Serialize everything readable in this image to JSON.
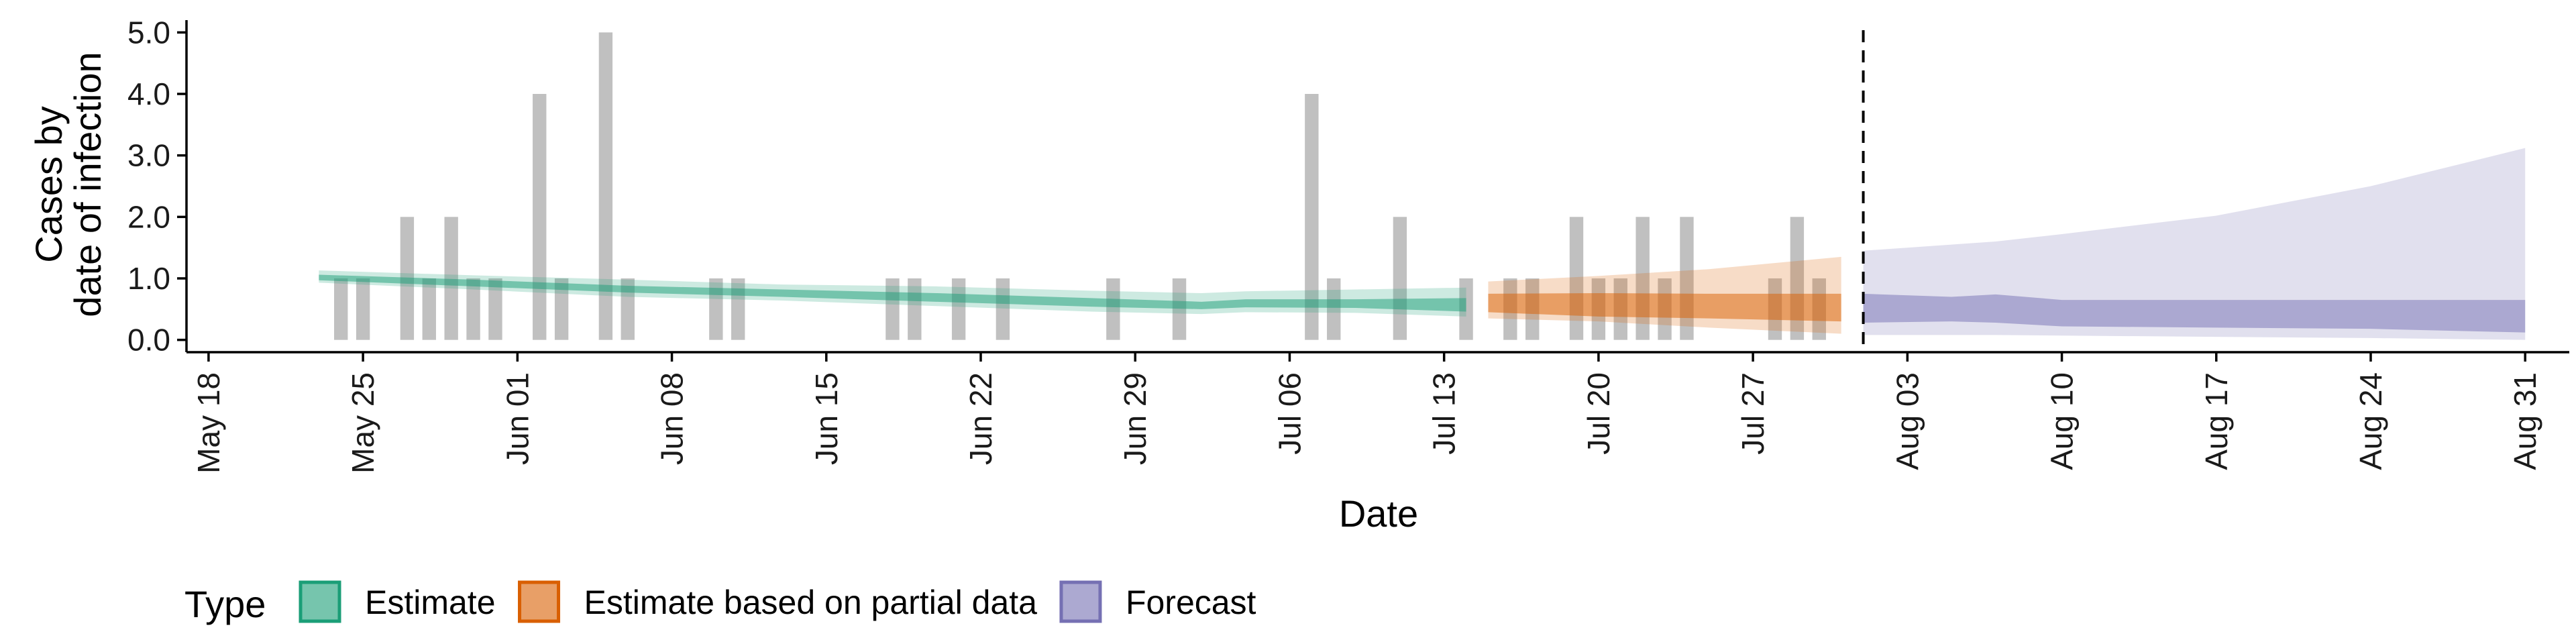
{
  "chart_data": {
    "type": "area",
    "xlabel": "Date",
    "ylabel_lines": [
      "Cases by",
      "date of infection"
    ],
    "x_axis": {
      "type": "date",
      "range": [
        "2020-05-17",
        "2020-09-02"
      ],
      "ticks": [
        {
          "date": "2020-05-18",
          "label": "May 18"
        },
        {
          "date": "2020-05-25",
          "label": "May 25"
        },
        {
          "date": "2020-06-01",
          "label": "Jun 01"
        },
        {
          "date": "2020-06-08",
          "label": "Jun 08"
        },
        {
          "date": "2020-06-15",
          "label": "Jun 15"
        },
        {
          "date": "2020-06-22",
          "label": "Jun 22"
        },
        {
          "date": "2020-06-29",
          "label": "Jun 29"
        },
        {
          "date": "2020-07-06",
          "label": "Jul 06"
        },
        {
          "date": "2020-07-13",
          "label": "Jul 13"
        },
        {
          "date": "2020-07-20",
          "label": "Jul 20"
        },
        {
          "date": "2020-07-27",
          "label": "Jul 27"
        },
        {
          "date": "2020-08-03",
          "label": "Aug 03"
        },
        {
          "date": "2020-08-10",
          "label": "Aug 10"
        },
        {
          "date": "2020-08-17",
          "label": "Aug 17"
        },
        {
          "date": "2020-08-24",
          "label": "Aug 24"
        },
        {
          "date": "2020-08-31",
          "label": "Aug 31"
        }
      ]
    },
    "y_axis": {
      "range": [
        -0.2,
        5.2
      ],
      "ticks": [
        {
          "value": 0,
          "label": "0.0"
        },
        {
          "value": 1,
          "label": "1.0"
        },
        {
          "value": 2,
          "label": "2.0"
        },
        {
          "value": 3,
          "label": "3.0"
        },
        {
          "value": 4,
          "label": "4.0"
        },
        {
          "value": 5,
          "label": "5.0"
        }
      ]
    },
    "grid": false,
    "legend": {
      "position": "bottom",
      "title": "Type",
      "items": [
        {
          "label": "Estimate",
          "fill": "#1b9e77",
          "border": "#1b9e77"
        },
        {
          "label": "Estimate based on partial data",
          "fill": "#d95f02",
          "border": "#d95f02"
        },
        {
          "label": "Forecast",
          "fill": "#7570b3",
          "border": "#7570b3"
        }
      ]
    },
    "observed_cases": {
      "color": "#bdbdbd",
      "bars": [
        {
          "date": "2020-05-24",
          "value": 1
        },
        {
          "date": "2020-05-25",
          "value": 1
        },
        {
          "date": "2020-05-27",
          "value": 2
        },
        {
          "date": "2020-05-28",
          "value": 1
        },
        {
          "date": "2020-05-29",
          "value": 2
        },
        {
          "date": "2020-05-30",
          "value": 1
        },
        {
          "date": "2020-05-31",
          "value": 1
        },
        {
          "date": "2020-06-02",
          "value": 4
        },
        {
          "date": "2020-06-03",
          "value": 1
        },
        {
          "date": "2020-06-05",
          "value": 5
        },
        {
          "date": "2020-06-06",
          "value": 1
        },
        {
          "date": "2020-06-10",
          "value": 1
        },
        {
          "date": "2020-06-11",
          "value": 1
        },
        {
          "date": "2020-06-18",
          "value": 1
        },
        {
          "date": "2020-06-19",
          "value": 1
        },
        {
          "date": "2020-06-21",
          "value": 1
        },
        {
          "date": "2020-06-23",
          "value": 1
        },
        {
          "date": "2020-06-28",
          "value": 1
        },
        {
          "date": "2020-07-01",
          "value": 1
        },
        {
          "date": "2020-07-07",
          "value": 4
        },
        {
          "date": "2020-07-08",
          "value": 1
        },
        {
          "date": "2020-07-11",
          "value": 2
        },
        {
          "date": "2020-07-14",
          "value": 1
        },
        {
          "date": "2020-07-16",
          "value": 1
        },
        {
          "date": "2020-07-17",
          "value": 1
        },
        {
          "date": "2020-07-19",
          "value": 2
        },
        {
          "date": "2020-07-20",
          "value": 1
        },
        {
          "date": "2020-07-21",
          "value": 1
        },
        {
          "date": "2020-07-22",
          "value": 2
        },
        {
          "date": "2020-07-23",
          "value": 1
        },
        {
          "date": "2020-07-24",
          "value": 2
        },
        {
          "date": "2020-07-28",
          "value": 1
        },
        {
          "date": "2020-07-29",
          "value": 2
        },
        {
          "date": "2020-07-30",
          "value": 1
        }
      ]
    },
    "forecast_start": "2020-08-01",
    "series": [
      {
        "name": "Estimate",
        "color": "#1b9e77",
        "points": [
          {
            "date": "2020-05-23",
            "outer": [
              0.93,
              1.13
            ],
            "inner": [
              0.97,
              1.06
            ]
          },
          {
            "date": "2020-05-30",
            "outer": [
              0.82,
              1.05
            ],
            "inner": [
              0.87,
              0.98
            ]
          },
          {
            "date": "2020-06-06",
            "outer": [
              0.7,
              0.98
            ],
            "inner": [
              0.77,
              0.88
            ]
          },
          {
            "date": "2020-06-13",
            "outer": [
              0.64,
              0.9
            ],
            "inner": [
              0.7,
              0.82
            ]
          },
          {
            "date": "2020-06-20",
            "outer": [
              0.55,
              0.87
            ],
            "inner": [
              0.62,
              0.76
            ]
          },
          {
            "date": "2020-06-27",
            "outer": [
              0.46,
              0.8
            ],
            "inner": [
              0.54,
              0.68
            ]
          },
          {
            "date": "2020-07-02",
            "outer": [
              0.42,
              0.76
            ],
            "inner": [
              0.5,
              0.62
            ]
          },
          {
            "date": "2020-07-04",
            "outer": [
              0.45,
              0.79
            ],
            "inner": [
              0.53,
              0.66
            ]
          },
          {
            "date": "2020-07-09",
            "outer": [
              0.44,
              0.82
            ],
            "inner": [
              0.52,
              0.66
            ]
          },
          {
            "date": "2020-07-14",
            "outer": [
              0.38,
              0.85
            ],
            "inner": [
              0.46,
              0.68
            ]
          }
        ]
      },
      {
        "name": "Estimate based on partial data",
        "color": "#d95f02",
        "points": [
          {
            "date": "2020-07-15",
            "outer": [
              0.35,
              0.95
            ],
            "inner": [
              0.45,
              0.75
            ]
          },
          {
            "date": "2020-07-20",
            "outer": [
              0.3,
              1.04
            ],
            "inner": [
              0.38,
              0.76
            ]
          },
          {
            "date": "2020-07-25",
            "outer": [
              0.2,
              1.15
            ],
            "inner": [
              0.35,
              0.75
            ]
          },
          {
            "date": "2020-07-31",
            "outer": [
              0.1,
              1.35
            ],
            "inner": [
              0.3,
              0.75
            ]
          }
        ]
      },
      {
        "name": "Forecast",
        "color": "#7570b3",
        "points": [
          {
            "date": "2020-08-01",
            "outer": [
              0.08,
              1.45
            ],
            "inner": [
              0.28,
              0.75
            ]
          },
          {
            "date": "2020-08-05",
            "outer": [
              0.08,
              1.55
            ],
            "inner": [
              0.3,
              0.7
            ]
          },
          {
            "date": "2020-08-07",
            "outer": [
              0.08,
              1.6
            ],
            "inner": [
              0.28,
              0.74
            ]
          },
          {
            "date": "2020-08-10",
            "outer": [
              0.07,
              1.72
            ],
            "inner": [
              0.22,
              0.65
            ]
          },
          {
            "date": "2020-08-17",
            "outer": [
              0.05,
              2.02
            ],
            "inner": [
              0.2,
              0.65
            ]
          },
          {
            "date": "2020-08-24",
            "outer": [
              0.03,
              2.5
            ],
            "inner": [
              0.18,
              0.65
            ]
          },
          {
            "date": "2020-08-31",
            "outer": [
              0.0,
              3.12
            ],
            "inner": [
              0.12,
              0.65
            ]
          }
        ]
      }
    ]
  }
}
